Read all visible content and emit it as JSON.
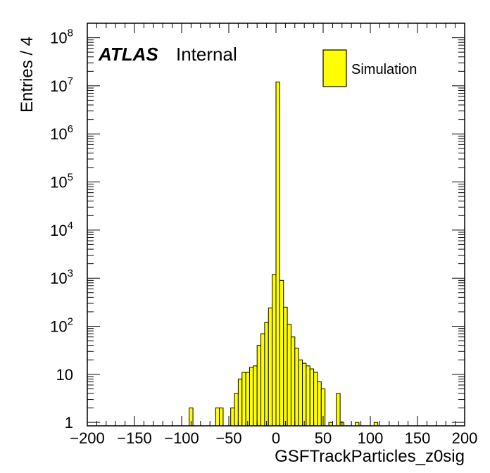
{
  "chart_data": {
    "type": "bar",
    "xlabel": "GSFTrackParticles_z0sig",
    "ylabel": "Entries / 4",
    "xlim": [
      -200,
      200
    ],
    "ylim": [
      0.85,
      200000000
    ],
    "yscale": "log",
    "bin_width": 4,
    "x_ticks": [
      -200,
      -150,
      -100,
      -50,
      0,
      50,
      100,
      150,
      200
    ],
    "x_tick_labels": [
      "−200",
      "−150",
      "−100",
      "−50",
      "0",
      "50",
      "100",
      "150",
      "200"
    ],
    "y_ticks": [
      {
        "value": 1,
        "base": "1",
        "exp": ""
      },
      {
        "value": 10,
        "base": "10",
        "exp": ""
      },
      {
        "value": 100,
        "base": "10",
        "exp": "2"
      },
      {
        "value": 1000,
        "base": "10",
        "exp": "3"
      },
      {
        "value": 10000,
        "base": "10",
        "exp": "4"
      },
      {
        "value": 100000,
        "base": "10",
        "exp": "5"
      },
      {
        "value": 1000000,
        "base": "10",
        "exp": "6"
      },
      {
        "value": 10000000,
        "base": "10",
        "exp": "7"
      },
      {
        "value": 100000000,
        "base": "10",
        "exp": "8"
      }
    ],
    "fill_color": "#ffff00",
    "edge_color": "#000000",
    "series": [
      {
        "name": "Simulation",
        "bins": [
          {
            "x": -92,
            "y": 2
          },
          {
            "x": -64,
            "y": 2
          },
          {
            "x": -60,
            "y": 2
          },
          {
            "x": -48,
            "y": 2
          },
          {
            "x": -44,
            "y": 4
          },
          {
            "x": -40,
            "y": 8
          },
          {
            "x": -36,
            "y": 11
          },
          {
            "x": -32,
            "y": 11
          },
          {
            "x": -28,
            "y": 14
          },
          {
            "x": -24,
            "y": 15
          },
          {
            "x": -20,
            "y": 40
          },
          {
            "x": -16,
            "y": 70
          },
          {
            "x": -12,
            "y": 120
          },
          {
            "x": -8,
            "y": 240
          },
          {
            "x": -4,
            "y": 1200
          },
          {
            "x": 0,
            "y": 12000000
          },
          {
            "x": 4,
            "y": 900
          },
          {
            "x": 8,
            "y": 250
          },
          {
            "x": 12,
            "y": 110
          },
          {
            "x": 16,
            "y": 60
          },
          {
            "x": 20,
            "y": 35
          },
          {
            "x": 24,
            "y": 20
          },
          {
            "x": 28,
            "y": 17
          },
          {
            "x": 32,
            "y": 15
          },
          {
            "x": 36,
            "y": 13
          },
          {
            "x": 40,
            "y": 11
          },
          {
            "x": 44,
            "y": 7
          },
          {
            "x": 48,
            "y": 5
          },
          {
            "x": 56,
            "y": 1
          },
          {
            "x": 64,
            "y": 4
          },
          {
            "x": 68,
            "y": 1
          },
          {
            "x": 84,
            "y": 1
          },
          {
            "x": 104,
            "y": 1
          }
        ]
      }
    ],
    "legend": {
      "entries": [
        "Simulation"
      ],
      "position": "top-right"
    }
  },
  "labels": {
    "atlas": "ATLAS",
    "internal": "Internal"
  }
}
